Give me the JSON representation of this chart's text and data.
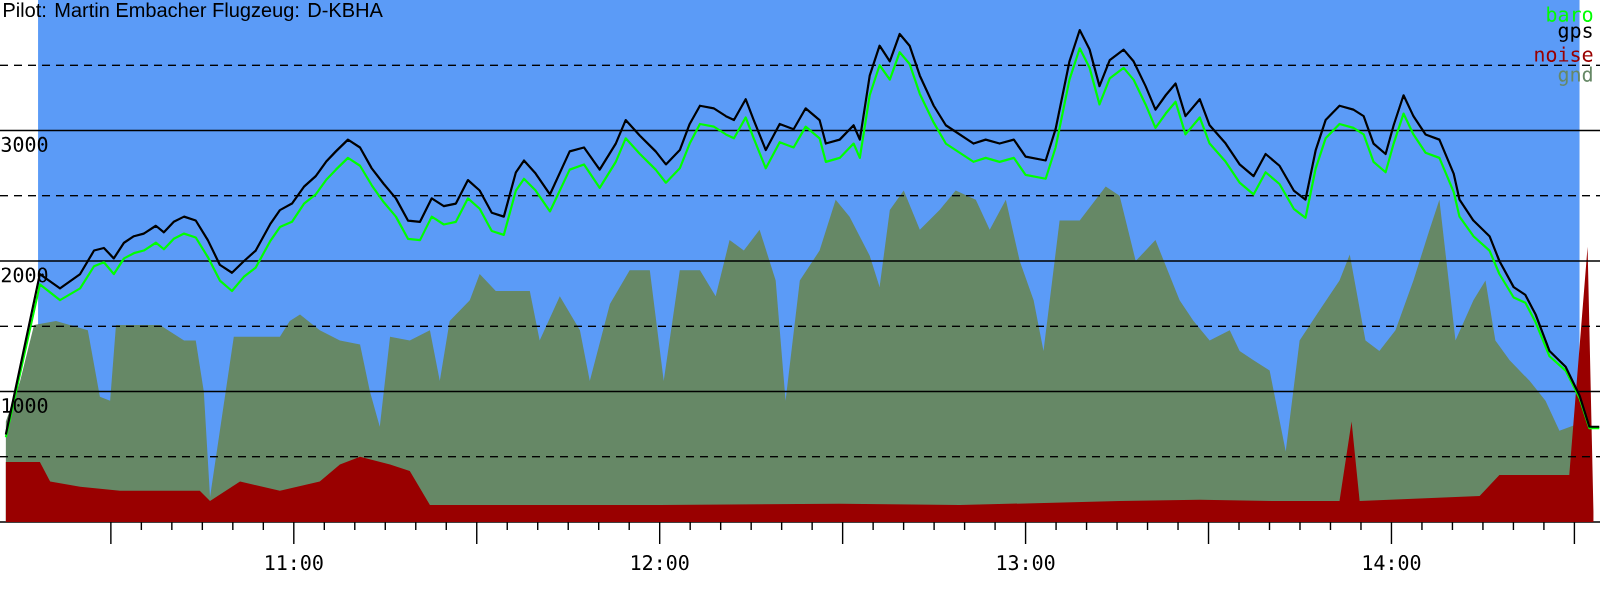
{
  "chart_data": {
    "type": "line",
    "title": "Pilot: Martin Embacher Flugzeug: D-KBHA",
    "xlim": [
      10.197,
      14.57
    ],
    "ylim": [
      0,
      4000
    ],
    "xticks": [
      {
        "value": 10.5,
        "label": null
      },
      {
        "value": 11,
        "label": "11:00"
      },
      {
        "value": 11.5,
        "label": null
      },
      {
        "value": 12,
        "label": "12:00"
      },
      {
        "value": 12.5,
        "label": null
      },
      {
        "value": 13,
        "label": "13:00"
      },
      {
        "value": 13.5,
        "label": null
      },
      {
        "value": 14,
        "label": "14:00"
      },
      {
        "value": 14.5,
        "label": null
      }
    ],
    "yticks": [
      {
        "value": 500,
        "label": null
      },
      1000,
      {
        "value": 1500,
        "label": null
      },
      2000,
      {
        "value": 2500,
        "label": null
      },
      3000,
      {
        "value": 3500,
        "label": null
      }
    ],
    "grid": "y",
    "legend": "top right",
    "bands": [
      {
        "axis": "x",
        "from": 10.301,
        "to": 14.514,
        "color": "#5b9bf7"
      }
    ],
    "series": [
      {
        "name": "baro",
        "color": "#00ff00",
        "x": [
          10.213,
          10.306,
          10.361,
          10.416,
          10.454,
          10.481,
          10.508,
          10.536,
          10.563,
          10.59,
          10.623,
          10.645,
          10.672,
          10.7,
          10.732,
          10.765,
          10.798,
          10.831,
          10.864,
          10.896,
          10.935,
          10.962,
          10.995,
          11.028,
          11.06,
          11.088,
          11.115,
          11.148,
          11.181,
          11.213,
          11.246,
          11.279,
          11.312,
          11.345,
          11.377,
          11.41,
          11.443,
          11.476,
          11.508,
          11.541,
          11.574,
          11.607,
          11.629,
          11.661,
          11.7,
          11.754,
          11.793,
          11.836,
          11.88,
          11.907,
          11.946,
          11.989,
          12.017,
          12.055,
          12.082,
          12.11,
          12.148,
          12.181,
          12.203,
          12.235,
          12.257,
          12.29,
          12.328,
          12.366,
          12.399,
          12.437,
          12.454,
          12.492,
          12.53,
          12.547,
          12.574,
          12.601,
          12.629,
          12.656,
          12.683,
          12.711,
          12.749,
          12.782,
          12.82,
          12.858,
          12.891,
          12.929,
          12.968,
          13.0,
          13.055,
          13.082,
          13.12,
          13.148,
          13.175,
          13.202,
          13.23,
          13.268,
          13.295,
          13.328,
          13.355,
          13.383,
          13.41,
          13.437,
          13.476,
          13.503,
          13.547,
          13.585,
          13.623,
          13.656,
          13.694,
          13.733,
          13.765,
          13.793,
          13.82,
          13.858,
          13.896,
          13.924,
          13.951,
          13.984,
          14.006,
          14.033,
          14.06,
          14.093,
          14.131,
          14.17,
          14.186,
          14.224,
          14.268,
          14.295,
          14.334,
          14.366,
          14.394,
          14.432,
          14.476,
          14.514,
          14.541,
          14.568
        ],
        "values": [
          650,
          1820,
          1700,
          1790,
          1960,
          1990,
          1900,
          2020,
          2060,
          2080,
          2140,
          2090,
          2170,
          2210,
          2180,
          2030,
          1850,
          1770,
          1880,
          1950,
          2150,
          2260,
          2300,
          2440,
          2510,
          2620,
          2700,
          2790,
          2730,
          2580,
          2450,
          2340,
          2170,
          2160,
          2340,
          2280,
          2300,
          2480,
          2400,
          2230,
          2200,
          2540,
          2630,
          2540,
          2380,
          2700,
          2740,
          2560,
          2760,
          2940,
          2820,
          2700,
          2600,
          2710,
          2900,
          3050,
          3030,
          2970,
          2940,
          3100,
          2940,
          2710,
          2910,
          2870,
          3030,
          2940,
          2760,
          2790,
          2900,
          2790,
          3270,
          3500,
          3390,
          3600,
          3510,
          3280,
          3060,
          2900,
          2830,
          2760,
          2790,
          2760,
          2790,
          2660,
          2630,
          2870,
          3390,
          3630,
          3480,
          3200,
          3400,
          3480,
          3390,
          3200,
          3020,
          3130,
          3220,
          2970,
          3100,
          2900,
          2760,
          2600,
          2510,
          2680,
          2590,
          2400,
          2330,
          2710,
          2940,
          3050,
          3020,
          2970,
          2760,
          2680,
          2900,
          3130,
          2970,
          2830,
          2790,
          2530,
          2340,
          2190,
          2080,
          1900,
          1720,
          1680,
          1530,
          1270,
          1160,
          950,
          720,
          720
        ]
      },
      {
        "name": "gps",
        "color": "#000000",
        "x": [
          10.213,
          10.306,
          10.361,
          10.416,
          10.454,
          10.481,
          10.508,
          10.536,
          10.563,
          10.59,
          10.623,
          10.645,
          10.672,
          10.7,
          10.732,
          10.765,
          10.798,
          10.831,
          10.864,
          10.896,
          10.935,
          10.962,
          10.995,
          11.028,
          11.06,
          11.088,
          11.115,
          11.148,
          11.181,
          11.213,
          11.246,
          11.279,
          11.312,
          11.345,
          11.377,
          11.41,
          11.443,
          11.476,
          11.508,
          11.541,
          11.574,
          11.607,
          11.629,
          11.661,
          11.7,
          11.754,
          11.793,
          11.836,
          11.88,
          11.907,
          11.946,
          11.989,
          12.017,
          12.055,
          12.082,
          12.11,
          12.148,
          12.181,
          12.203,
          12.235,
          12.257,
          12.29,
          12.328,
          12.366,
          12.399,
          12.437,
          12.454,
          12.492,
          12.53,
          12.547,
          12.574,
          12.601,
          12.629,
          12.656,
          12.683,
          12.711,
          12.749,
          12.782,
          12.82,
          12.858,
          12.891,
          12.929,
          12.968,
          13.0,
          13.055,
          13.082,
          13.12,
          13.148,
          13.175,
          13.202,
          13.23,
          13.268,
          13.295,
          13.328,
          13.355,
          13.383,
          13.41,
          13.437,
          13.476,
          13.503,
          13.547,
          13.585,
          13.623,
          13.656,
          13.694,
          13.733,
          13.765,
          13.793,
          13.82,
          13.858,
          13.896,
          13.924,
          13.951,
          13.984,
          14.006,
          14.033,
          14.06,
          14.093,
          14.131,
          14.17,
          14.186,
          14.224,
          14.268,
          14.295,
          14.334,
          14.366,
          14.394,
          14.432,
          14.476,
          14.514,
          14.541,
          14.568
        ],
        "values": [
          670,
          1900,
          1790,
          1900,
          2080,
          2100,
          2020,
          2140,
          2190,
          2210,
          2270,
          2220,
          2300,
          2340,
          2310,
          2160,
          1970,
          1910,
          2000,
          2080,
          2280,
          2390,
          2440,
          2570,
          2650,
          2760,
          2840,
          2930,
          2870,
          2710,
          2590,
          2480,
          2310,
          2300,
          2480,
          2420,
          2440,
          2620,
          2540,
          2370,
          2340,
          2680,
          2770,
          2670,
          2510,
          2840,
          2870,
          2700,
          2900,
          3080,
          2960,
          2840,
          2740,
          2850,
          3050,
          3190,
          3170,
          3110,
          3080,
          3240,
          3080,
          2850,
          3050,
          3010,
          3170,
          3080,
          2900,
          2930,
          3040,
          2930,
          3420,
          3650,
          3530,
          3740,
          3650,
          3420,
          3190,
          3040,
          2970,
          2900,
          2930,
          2900,
          2930,
          2800,
          2770,
          3010,
          3530,
          3770,
          3620,
          3340,
          3540,
          3620,
          3530,
          3340,
          3160,
          3270,
          3360,
          3110,
          3240,
          3040,
          2900,
          2740,
          2650,
          2820,
          2730,
          2540,
          2470,
          2850,
          3080,
          3190,
          3160,
          3110,
          2900,
          2820,
          3040,
          3270,
          3110,
          2970,
          2930,
          2670,
          2470,
          2310,
          2190,
          2000,
          1800,
          1740,
          1590,
          1310,
          1190,
          970,
          730,
          730
        ]
      },
      {
        "name": "noise",
        "color": "#990000",
        "type": "area",
        "x": [
          10.213,
          10.306,
          10.334,
          10.416,
          10.525,
          10.634,
          10.743,
          10.771,
          10.853,
          10.962,
          11.071,
          11.126,
          11.181,
          11.263,
          11.317,
          11.372,
          11.618,
          12.0,
          12.492,
          12.82,
          13.257,
          13.476,
          13.694,
          13.858,
          13.891,
          13.913,
          14.241,
          14.295,
          14.486,
          14.536,
          14.552
        ],
        "values": [
          460,
          460,
          310,
          270,
          240,
          240,
          240,
          160,
          310,
          240,
          310,
          440,
          500,
          440,
          390,
          130,
          130,
          130,
          140,
          130,
          160,
          170,
          160,
          160,
          770,
          160,
          200,
          360,
          360,
          2110,
          80
        ]
      },
      {
        "name": "gnd",
        "color": "#668866",
        "type": "area",
        "x": [
          10.213,
          10.252,
          10.29,
          10.35,
          10.437,
          10.47,
          10.498,
          10.514,
          10.634,
          10.7,
          10.732,
          10.754,
          10.771,
          10.814,
          10.836,
          10.962,
          10.989,
          11.017,
          11.071,
          11.126,
          11.181,
          11.208,
          11.235,
          11.263,
          11.317,
          11.372,
          11.399,
          11.426,
          11.481,
          11.508,
          11.552,
          11.645,
          11.672,
          11.727,
          11.782,
          11.809,
          11.864,
          11.918,
          11.973,
          12.011,
          12.055,
          12.11,
          12.153,
          12.191,
          12.23,
          12.273,
          12.317,
          12.344,
          12.383,
          12.437,
          12.481,
          12.519,
          12.574,
          12.601,
          12.629,
          12.667,
          12.711,
          12.765,
          12.809,
          12.864,
          12.902,
          12.946,
          12.984,
          13.022,
          13.049,
          13.093,
          13.148,
          13.219,
          13.257,
          13.301,
          13.355,
          13.421,
          13.459,
          13.503,
          13.558,
          13.585,
          13.623,
          13.667,
          13.711,
          13.749,
          13.803,
          13.858,
          13.886,
          13.929,
          13.967,
          14.011,
          14.06,
          14.104,
          14.131,
          14.175,
          14.224,
          14.257,
          14.284,
          14.323,
          14.378,
          14.421,
          14.459,
          14.498,
          14.541
        ],
        "values": [
          770,
          1080,
          1510,
          1540,
          1470,
          960,
          930,
          1510,
          1510,
          1390,
          1390,
          1000,
          190,
          null,
          1420,
          1420,
          1540,
          1590,
          1470,
          1390,
          1360,
          1000,
          730,
          1420,
          1390,
          1470,
          1080,
          1540,
          1700,
          1900,
          1770,
          1770,
          1390,
          1730,
          1470,
          1080,
          1670,
          1930,
          1930,
          1080,
          1930,
          1930,
          1730,
          2160,
          2080,
          2240,
          1850,
          930,
          1850,
          2080,
          2470,
          2340,
          2040,
          1800,
          2390,
          2540,
          2240,
          2390,
          2540,
          2470,
          2240,
          2470,
          2000,
          1700,
          1310,
          2310,
          2310,
          2570,
          2500,
          2000,
          2160,
          1700,
          1540,
          1390,
          1470,
          1310,
          1240,
          1160,
          540,
          1390,
          1620,
          1850,
          2050,
          1390,
          1310,
          1470,
          1850,
          2240,
          2470,
          1390,
          1700,
          1850,
          1390,
          1240,
          1080,
          930,
          700,
          740,
          710
        ]
      }
    ]
  }
}
